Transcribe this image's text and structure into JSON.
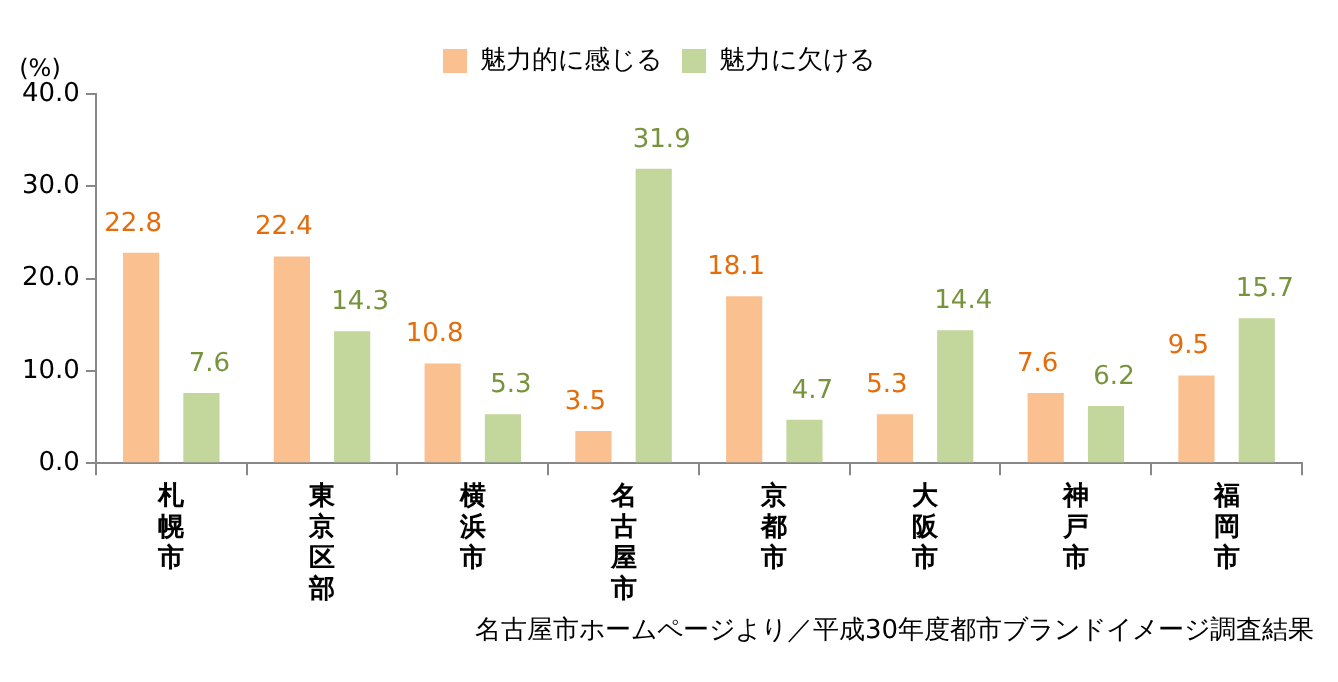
{
  "chart_data": {
    "type": "bar",
    "ylabel": "(%)",
    "categories": [
      "札幌市",
      "東京区部",
      "横浜市",
      "名古屋市",
      "京都市",
      "大阪市",
      "神戸市",
      "福岡市"
    ],
    "series": [
      {
        "name": "魅力的に感じる",
        "color": "#fac090",
        "values": [
          22.8,
          22.4,
          10.8,
          3.5,
          18.1,
          5.3,
          7.6,
          9.5
        ]
      },
      {
        "name": "魅力に欠ける",
        "color": "#c3d69b",
        "values": [
          7.6,
          14.3,
          5.3,
          31.9,
          4.7,
          14.4,
          6.2,
          15.7
        ]
      }
    ],
    "ylim": [
      0,
      40
    ],
    "yticks": [
      {
        "value": 0,
        "label": "0.0"
      },
      {
        "value": 10,
        "label": "10.0"
      },
      {
        "value": 20,
        "label": "20.0"
      },
      {
        "value": 30,
        "label": "30.0"
      },
      {
        "value": 40,
        "label": "40.0"
      }
    ],
    "grid": false,
    "legend": "top",
    "data_labels": true,
    "annotations": [
      "名古屋市ホームページより／平成30年度都市ブランドイメージ調査結果"
    ]
  }
}
